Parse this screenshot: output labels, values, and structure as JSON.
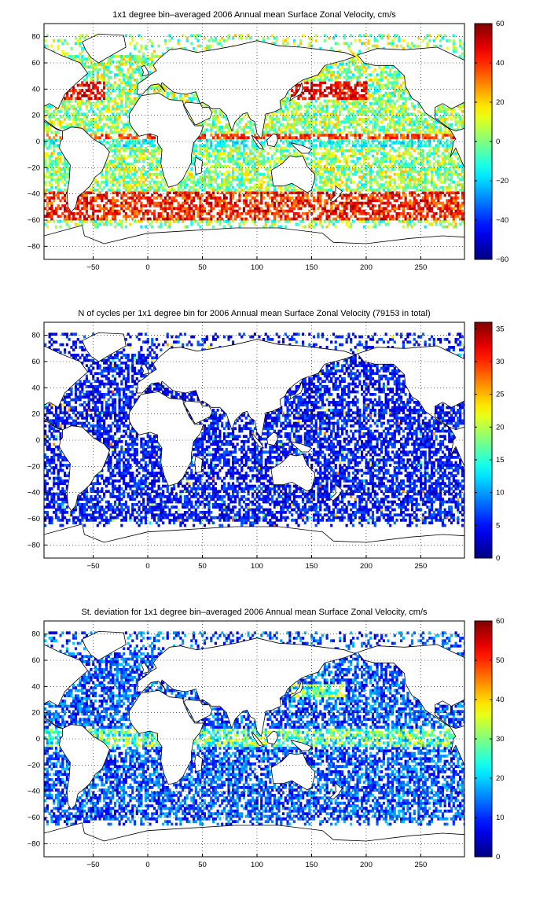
{
  "chart_data": [
    {
      "type": "heatmap",
      "title": "1x1 degree bin–averaged 2006 Annual mean Surface Zonal Velocity, cm/s",
      "xlim": [
        -95,
        290
      ],
      "ylim": [
        -90,
        90
      ],
      "xticks": [
        -50,
        0,
        50,
        100,
        150,
        200,
        250
      ],
      "yticks": [
        80,
        60,
        40,
        20,
        0,
        -20,
        -40,
        -60,
        -80
      ],
      "grid": "dotted",
      "colorbar": {
        "min": -60,
        "max": 60,
        "ticks": [
          60,
          40,
          20,
          0,
          -20,
          -40,
          -60
        ],
        "colormap": "jet"
      },
      "field": "velocity"
    },
    {
      "type": "heatmap",
      "title": "N of cycles per 1x1 degree bin for 2006 Annual mean Surface Zonal Velocity (79153 in total)",
      "xlim": [
        -95,
        290
      ],
      "ylim": [
        -90,
        90
      ],
      "xticks": [
        -50,
        0,
        50,
        100,
        150,
        200,
        250
      ],
      "yticks": [
        80,
        60,
        40,
        20,
        0,
        -20,
        -40,
        -60,
        -80
      ],
      "grid": "dotted",
      "colorbar": {
        "min": 0,
        "max": 36,
        "ticks": [
          35,
          30,
          25,
          20,
          15,
          10,
          5,
          0
        ],
        "colormap": "jet"
      },
      "field": "count"
    },
    {
      "type": "heatmap",
      "title": "St. deviation for 1x1 degree bin–averaged 2006 Annual mean Surface Zonal Velocity, cm/s",
      "xlim": [
        -95,
        290
      ],
      "ylim": [
        -90,
        90
      ],
      "xticks": [
        -50,
        0,
        50,
        100,
        150,
        200,
        250
      ],
      "yticks": [
        80,
        60,
        40,
        20,
        0,
        -20,
        -40,
        -60,
        -80
      ],
      "grid": "dotted",
      "colorbar": {
        "min": 0,
        "max": 60,
        "ticks": [
          60,
          50,
          40,
          30,
          20,
          10,
          0
        ],
        "colormap": "jet"
      },
      "field": "stddev"
    }
  ]
}
